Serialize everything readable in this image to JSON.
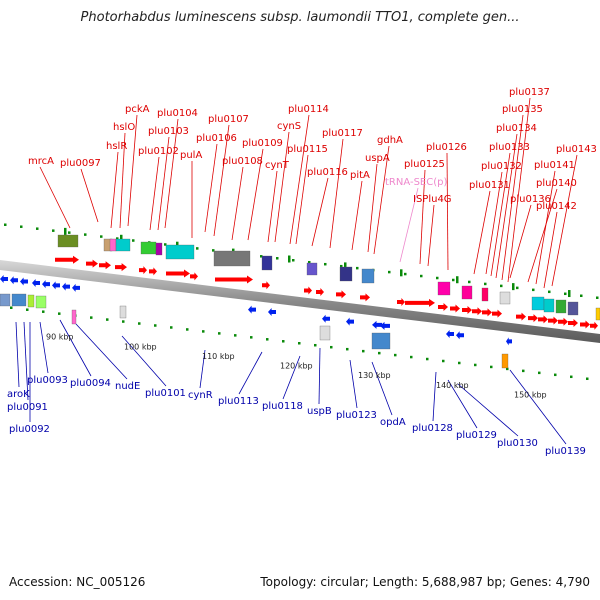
{
  "title": "Photorhabdus luminescens subsp. laumondii TTO1, complete gen...",
  "footer": {
    "accession_label": "Accession: NC_005126",
    "summary": "Topology: circular; Length: 5,688,987 bp; Genes: 4,790"
  },
  "colors": {
    "forward_label": "#dd0000",
    "reverse_label": "#0000aa",
    "rna_label": "#ee88cc",
    "forward_arrow": "#ff0000",
    "reverse_arrow": "#0022ee",
    "backbone": "#8a8a8a",
    "tick": "#0a8a0a"
  },
  "scale_labels": [
    {
      "text": "90 kbp",
      "kb": 90
    },
    {
      "text": "100 kbp",
      "kb": 100
    },
    {
      "text": "110 kbp",
      "kb": 110
    },
    {
      "text": "120 kbp",
      "kb": 120
    },
    {
      "text": "130 kbp",
      "kb": 130
    },
    {
      "text": "140 kbp",
      "kb": 140
    },
    {
      "text": "150 kbp",
      "kb": 150
    }
  ],
  "forward_genes": [
    "mrcA",
    "plu0097",
    "hslR",
    "hslO",
    "pckA",
    "plu0102",
    "plu0103",
    "plu0104",
    "plu0106",
    "pulA",
    "plu0107",
    "plu0108",
    "plu0109",
    "cynT",
    "cynS",
    "plu0114",
    "plu0115",
    "plu0116",
    "plu0117",
    "pitA",
    "uspA",
    "gdhA",
    "tRNA-SEC(p)",
    "plu0125",
    "ISPlu4G",
    "plu0126",
    "plu0131",
    "plu0132",
    "plu0133",
    "plu0134",
    "plu0135",
    "plu0136",
    "plu0137",
    "plu0140",
    "plu0141",
    "plu0142",
    "plu0143"
  ],
  "reverse_genes": [
    "aroK",
    "plu0091",
    "plu0092",
    "plu0093",
    "plu0094",
    "nudE",
    "plu0101",
    "cynR",
    "plu0113",
    "plu0118",
    "uspB",
    "plu0123",
    "opdA",
    "plu0128",
    "plu0129",
    "plu0130",
    "plu0139"
  ]
}
